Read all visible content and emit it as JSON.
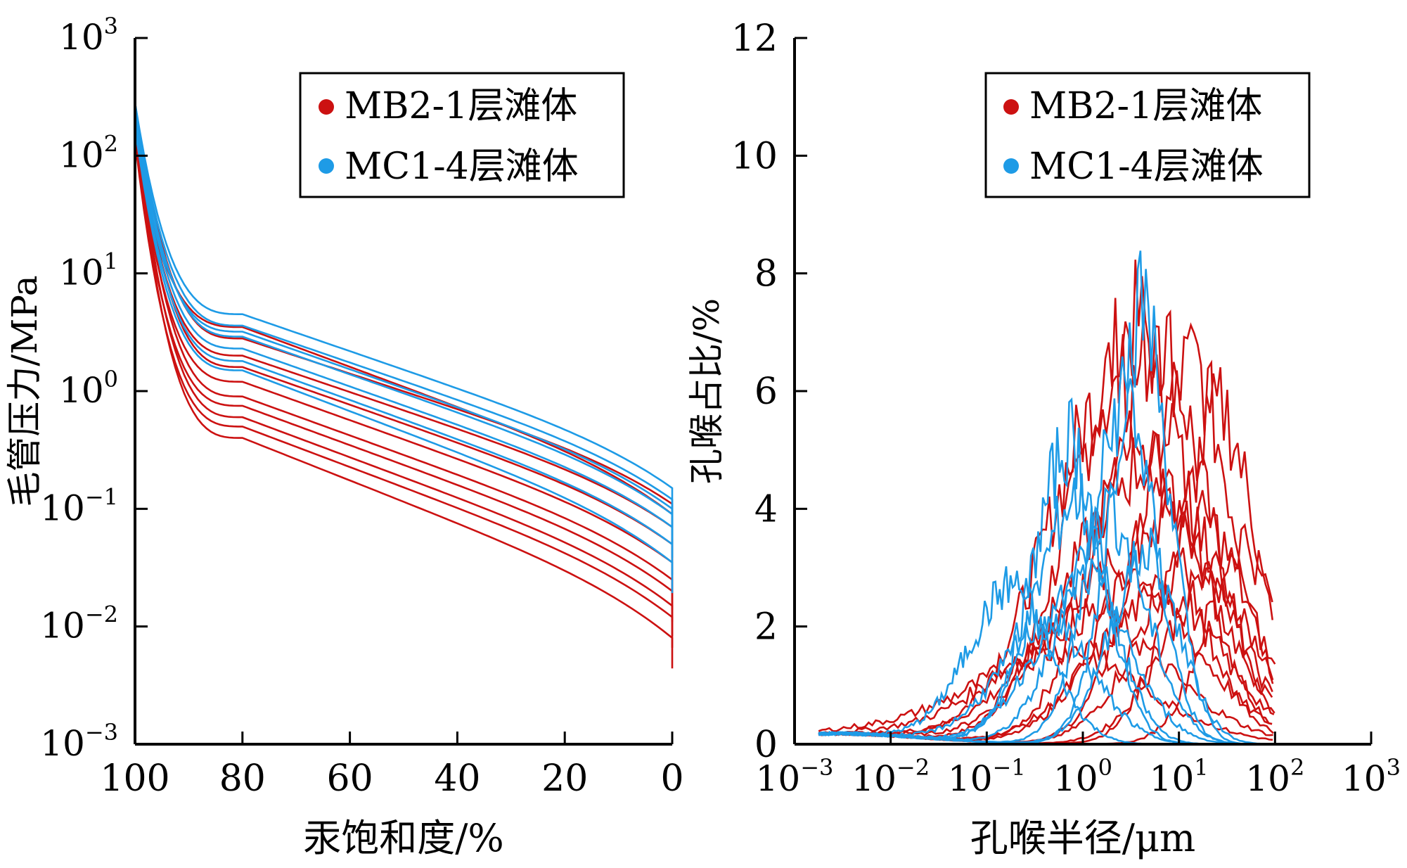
{
  "colors": {
    "red": "#cc1111",
    "blue": "#1e9be6",
    "axis": "#000000"
  },
  "chart_data": [
    {
      "type": "line",
      "xlabel": "汞饱和度/%",
      "ylabel": "毛管压力/MPa",
      "x_ticks": [
        "100",
        "80",
        "60",
        "40",
        "20",
        "0"
      ],
      "x_tick_values": [
        100,
        80,
        60,
        40,
        20,
        0
      ],
      "xlim": [
        100,
        0
      ],
      "y_scale": "log",
      "ylim": [
        0.001,
        1000
      ],
      "y_ticks": [
        {
          "base": "10",
          "exp": "3"
        },
        {
          "base": "10",
          "exp": "2"
        },
        {
          "base": "10",
          "exp": "1"
        },
        {
          "base": "10",
          "exp": "0"
        },
        {
          "base": "10",
          "exp": "−1"
        },
        {
          "base": "10",
          "exp": "−2"
        },
        {
          "base": "10",
          "exp": "−3"
        }
      ],
      "y_tick_values": [
        1000,
        100,
        10,
        1,
        0.1,
        0.01,
        0.001
      ],
      "legend": {
        "placement": "top-right",
        "entries": [
          {
            "label": "MB2-1层滩体",
            "color": "#cc1111"
          },
          {
            "label": "MC1-4层滩体",
            "color": "#1e9be6"
          }
        ]
      },
      "series": [
        {
          "group": "MB2-1层滩体",
          "color": "#cc1111",
          "curves": [
            {
              "knee": 2.8,
              "end": 0.11
            },
            {
              "knee": 1.6,
              "end": 0.05
            },
            {
              "knee": 0.9,
              "end": 0.025
            },
            {
              "knee": 0.6,
              "end": 0.015
            },
            {
              "knee": 0.4,
              "end": 0.008
            },
            {
              "knee": 2.0,
              "end": 0.07
            },
            {
              "knee": 1.2,
              "end": 0.035
            },
            {
              "knee": 0.75,
              "end": 0.02
            },
            {
              "knee": 0.5,
              "end": 0.012
            },
            {
              "knee": 3.5,
              "end": 0.09
            }
          ]
        },
        {
          "group": "MC1-4层滩体",
          "color": "#1e9be6",
          "curves": [
            {
              "knee": 4.5,
              "end": 0.15
            },
            {
              "knee": 3.6,
              "end": 0.12
            },
            {
              "knee": 2.9,
              "end": 0.09
            },
            {
              "knee": 2.3,
              "end": 0.07
            },
            {
              "knee": 1.8,
              "end": 0.05
            },
            {
              "knee": 1.5,
              "end": 0.035
            },
            {
              "knee": 3.2,
              "end": 0.1
            }
          ]
        }
      ]
    },
    {
      "type": "line",
      "xlabel": "孔喉半径/μm",
      "ylabel": "孔喉占比/%",
      "x_scale": "log",
      "xlim": [
        0.001,
        1000
      ],
      "x_ticks": [
        {
          "base": "10",
          "exp": "−3"
        },
        {
          "base": "10",
          "exp": "−2"
        },
        {
          "base": "10",
          "exp": "−1"
        },
        {
          "base": "10",
          "exp": "0"
        },
        {
          "base": "10",
          "exp": "1"
        },
        {
          "base": "10",
          "exp": "2"
        },
        {
          "base": "10",
          "exp": "3"
        }
      ],
      "x_tick_values": [
        0.001,
        0.01,
        0.1,
        1,
        10,
        100,
        1000
      ],
      "ylim": [
        0,
        12
      ],
      "y_ticks": [
        "12",
        "10",
        "8",
        "6",
        "4",
        "2",
        "0"
      ],
      "y_tick_values": [
        12,
        10,
        8,
        6,
        4,
        2,
        0
      ],
      "legend": {
        "placement": "top-right",
        "entries": [
          {
            "label": "MB2-1层滩体",
            "color": "#cc1111"
          },
          {
            "label": "MC1-4层滩体",
            "color": "#1e9be6"
          }
        ]
      },
      "series": [
        {
          "group": "MB2-1层滩体",
          "color": "#cc1111",
          "curves": [
            {
              "peak_x": 4.0,
              "peak_y": 7.2,
              "width": 1.0
            },
            {
              "peak_x": 7.0,
              "peak_y": 6.9,
              "width": 0.9
            },
            {
              "peak_x": 2.5,
              "peak_y": 6.2,
              "width": 1.1
            },
            {
              "peak_x": 15,
              "peak_y": 6.5,
              "width": 0.8
            },
            {
              "peak_x": 30,
              "peak_y": 5.7,
              "width": 0.7
            },
            {
              "peak_x": 5.0,
              "peak_y": 4.8,
              "width": 1.2
            },
            {
              "peak_x": 10,
              "peak_y": 4.2,
              "width": 1.0
            },
            {
              "peak_x": 20,
              "peak_y": 3.8,
              "width": 0.9
            },
            {
              "peak_x": 50,
              "peak_y": 3.5,
              "width": 0.6
            },
            {
              "peak_x": 3.0,
              "peak_y": 3.0,
              "width": 1.3
            },
            {
              "peak_x": 1.5,
              "peak_y": 2.2,
              "width": 1.4
            },
            {
              "peak_x": 8.0,
              "peak_y": 2.6,
              "width": 1.1
            },
            {
              "peak_x": 0.8,
              "peak_y": 1.6,
              "width": 1.5
            },
            {
              "peak_x": 25,
              "peak_y": 2.9,
              "width": 0.8
            }
          ]
        },
        {
          "group": "MC1-4层滩体",
          "color": "#1e9be6",
          "curves": [
            {
              "peak_x": 0.8,
              "peak_y": 5.2,
              "width": 0.6
            },
            {
              "peak_x": 0.9,
              "peak_y": 4.2,
              "width": 0.65
            },
            {
              "peak_x": 0.2,
              "peak_y": 2.7,
              "width": 0.7
            },
            {
              "peak_x": 4.5,
              "peak_y": 7.5,
              "width": 0.5
            },
            {
              "peak_x": 3.0,
              "peak_y": 6.0,
              "width": 0.55
            },
            {
              "peak_x": 2.0,
              "peak_y": 4.0,
              "width": 0.7
            },
            {
              "peak_x": 1.2,
              "peak_y": 2.8,
              "width": 0.8
            },
            {
              "peak_x": 5.0,
              "peak_y": 3.3,
              "width": 0.6
            },
            {
              "peak_x": 0.5,
              "peak_y": 2.1,
              "width": 0.8
            }
          ]
        }
      ]
    }
  ]
}
